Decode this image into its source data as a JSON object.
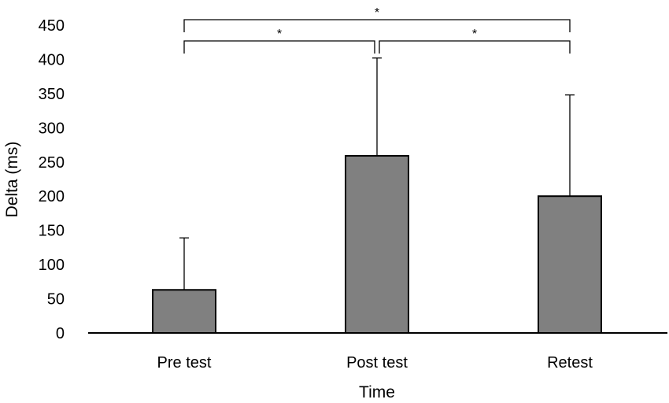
{
  "chart_data": {
    "type": "bar",
    "categories": [
      "Pre test",
      "Post test",
      "Retest"
    ],
    "values": [
      63,
      259,
      200
    ],
    "error_upper": [
      139,
      402,
      348
    ],
    "ylabel": "Delta (ms)",
    "xlabel": "Time",
    "ylim": [
      0,
      450
    ],
    "yticks": [
      0,
      50,
      100,
      150,
      200,
      250,
      300,
      350,
      400,
      450
    ],
    "bar_color": "#808080",
    "grid": false,
    "significance": [
      {
        "from": 0,
        "to": 1,
        "label": "*"
      },
      {
        "from": 1,
        "to": 2,
        "label": "*"
      },
      {
        "from": 0,
        "to": 2,
        "label": "*"
      }
    ]
  }
}
